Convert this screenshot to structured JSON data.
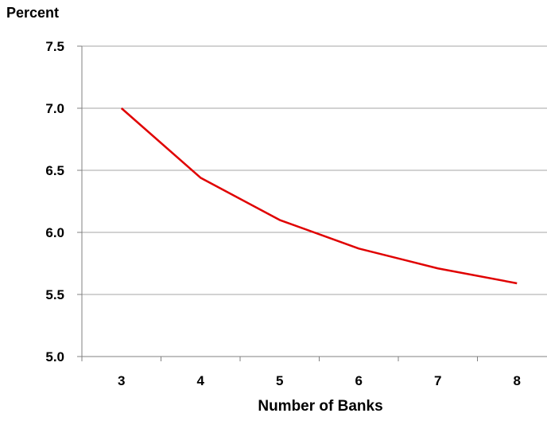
{
  "chart_data": {
    "type": "line",
    "title": "",
    "ylabel": "Percent",
    "xlabel": "Number of Banks",
    "x": [
      3,
      4,
      5,
      6,
      7,
      8
    ],
    "x_tick_labels": [
      "3",
      "4",
      "5",
      "6",
      "7",
      "8"
    ],
    "series": [
      {
        "values": [
          7.0,
          6.44,
          6.1,
          5.87,
          5.71,
          5.59
        ],
        "color": "#e00000"
      }
    ],
    "ylim": [
      5.0,
      7.5
    ],
    "y_ticks": [
      5.0,
      5.5,
      6.0,
      6.5,
      7.0,
      7.5
    ],
    "y_tick_labels": [
      "5.0",
      "5.5",
      "6.0",
      "6.5",
      "7.0",
      "7.5"
    ],
    "grid": true,
    "gridline_color": "#a6a6a6",
    "legend": "none"
  }
}
